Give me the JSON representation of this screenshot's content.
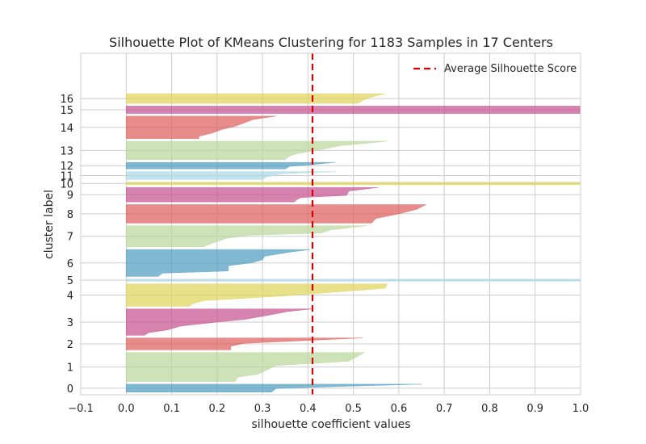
{
  "chart_data": {
    "type": "bar",
    "orientation": "horizontal",
    "title": "Silhouette Plot of KMeans Clustering for 1183 Samples in 17 Centers",
    "xlabel": "silhouette coefficient values",
    "ylabel": "cluster label",
    "xlim": [
      -0.1,
      1.0
    ],
    "ylim": [
      0,
      1293
    ],
    "x_ticks": [
      "−0.1",
      "0.0",
      "0.1",
      "0.2",
      "0.3",
      "0.4",
      "0.5",
      "0.6",
      "0.7",
      "0.8",
      "0.9",
      "1.0"
    ],
    "x_tick_values": [
      -0.1,
      0.0,
      0.1,
      0.2,
      0.3,
      0.4,
      0.5,
      0.6,
      0.7,
      0.8,
      0.9,
      1.0
    ],
    "grid": true,
    "legend_position": "top-right",
    "average_silhouette_score": 0.41,
    "average_line_label": "Average Silhouette Score",
    "average_line_color": "#dd0000",
    "clusters": [
      {
        "label": "0",
        "color": "#4c9bc1",
        "start": 10,
        "end": 40,
        "profile": [
          [
            0,
            0.65
          ],
          [
            0.25,
            0.49
          ],
          [
            0.55,
            0.33
          ],
          [
            1,
            0.32
          ]
        ]
      },
      {
        "label": "1",
        "color": "#b9d698",
        "start": 50,
        "end": 160,
        "profile": [
          [
            0,
            0.525
          ],
          [
            0.3,
            0.49
          ],
          [
            0.45,
            0.33
          ],
          [
            0.6,
            0.31
          ],
          [
            0.75,
            0.29
          ],
          [
            0.85,
            0.245
          ],
          [
            1,
            0.24
          ]
        ]
      },
      {
        "label": "2",
        "color": "#dd5b58",
        "start": 170,
        "end": 215,
        "profile": [
          [
            0,
            0.52
          ],
          [
            0.45,
            0.26
          ],
          [
            0.7,
            0.23
          ],
          [
            1,
            0.23
          ]
        ]
      },
      {
        "label": "3",
        "color": "#c44e8e",
        "start": 225,
        "end": 325,
        "profile": [
          [
            0,
            0.41
          ],
          [
            0.1,
            0.355
          ],
          [
            0.25,
            0.31
          ],
          [
            0.4,
            0.26
          ],
          [
            0.5,
            0.2
          ],
          [
            0.65,
            0.12
          ],
          [
            0.8,
            0.09
          ],
          [
            0.9,
            0.05
          ],
          [
            1,
            0.04
          ]
        ]
      },
      {
        "label": "4",
        "color": "#e0d359",
        "start": 335,
        "end": 420,
        "profile": [
          [
            0,
            0.575
          ],
          [
            0.2,
            0.57
          ],
          [
            0.4,
            0.44
          ],
          [
            0.55,
            0.34
          ],
          [
            0.75,
            0.17
          ],
          [
            0.9,
            0.145
          ],
          [
            1,
            0.14
          ]
        ]
      },
      {
        "label": "5",
        "color": "#a9d8e6",
        "start": 430,
        "end": 438,
        "profile": [
          [
            0,
            1.0
          ],
          [
            1,
            1.0
          ]
        ]
      },
      {
        "label": "6",
        "color": "#4c9bc1",
        "start": 448,
        "end": 550,
        "profile": [
          [
            0,
            0.405
          ],
          [
            0.1,
            0.36
          ],
          [
            0.25,
            0.305
          ],
          [
            0.38,
            0.3
          ],
          [
            0.5,
            0.275
          ],
          [
            0.6,
            0.225
          ],
          [
            0.8,
            0.225
          ],
          [
            0.88,
            0.08
          ],
          [
            1,
            0.07
          ]
        ]
      },
      {
        "label": "7",
        "color": "#b9d698",
        "start": 560,
        "end": 640,
        "profile": [
          [
            0,
            0.53
          ],
          [
            0.2,
            0.45
          ],
          [
            0.35,
            0.43
          ],
          [
            0.45,
            0.27
          ],
          [
            0.6,
            0.22
          ],
          [
            0.75,
            0.2
          ],
          [
            0.9,
            0.18
          ],
          [
            1,
            0.17
          ]
        ]
      },
      {
        "label": "8",
        "color": "#dd5b58",
        "start": 650,
        "end": 720,
        "profile": [
          [
            0,
            0.66
          ],
          [
            0.25,
            0.64
          ],
          [
            0.5,
            0.6
          ],
          [
            0.75,
            0.55
          ],
          [
            1,
            0.54
          ]
        ]
      },
      {
        "label": "9",
        "color": "#c44e8e",
        "start": 730,
        "end": 785,
        "profile": [
          [
            0,
            0.555
          ],
          [
            0.25,
            0.49
          ],
          [
            0.55,
            0.485
          ],
          [
            0.7,
            0.385
          ],
          [
            0.85,
            0.375
          ],
          [
            1,
            0.37
          ]
        ]
      },
      {
        "label": "10",
        "color": "#e0d359",
        "start": 795,
        "end": 805,
        "profile": [
          [
            0,
            1.0
          ],
          [
            1,
            1.0
          ]
        ]
      },
      {
        "label": "11",
        "color": "#a9d8e6",
        "start": 815,
        "end": 845,
        "profile": [
          [
            0,
            0.46
          ],
          [
            0.3,
            0.34
          ],
          [
            0.65,
            0.31
          ],
          [
            1,
            0.3
          ]
        ]
      },
      {
        "label": "12",
        "color": "#4c9bc1",
        "start": 855,
        "end": 880,
        "profile": [
          [
            0,
            0.46
          ],
          [
            0.35,
            0.41
          ],
          [
            0.6,
            0.36
          ],
          [
            1,
            0.35
          ]
        ]
      },
      {
        "label": "13",
        "color": "#b9d698",
        "start": 890,
        "end": 960,
        "profile": [
          [
            0,
            0.575
          ],
          [
            0.25,
            0.47
          ],
          [
            0.45,
            0.43
          ],
          [
            0.65,
            0.38
          ],
          [
            0.8,
            0.36
          ],
          [
            1,
            0.35
          ]
        ]
      },
      {
        "label": "14",
        "color": "#dd5b58",
        "start": 970,
        "end": 1055,
        "profile": [
          [
            0,
            0.33
          ],
          [
            0.15,
            0.28
          ],
          [
            0.3,
            0.26
          ],
          [
            0.45,
            0.24
          ],
          [
            0.6,
            0.21
          ],
          [
            0.75,
            0.19
          ],
          [
            0.9,
            0.16
          ],
          [
            1,
            0.16
          ]
        ]
      },
      {
        "label": "15",
        "color": "#c44e8e",
        "start": 1065,
        "end": 1093,
        "profile": [
          [
            0,
            1.0
          ],
          [
            1,
            1.0
          ]
        ]
      },
      {
        "label": "16",
        "color": "#e0d359",
        "start": 1103,
        "end": 1140,
        "profile": [
          [
            0,
            0.57
          ],
          [
            0.35,
            0.54
          ],
          [
            0.7,
            0.52
          ],
          [
            1,
            0.51
          ]
        ]
      }
    ]
  }
}
